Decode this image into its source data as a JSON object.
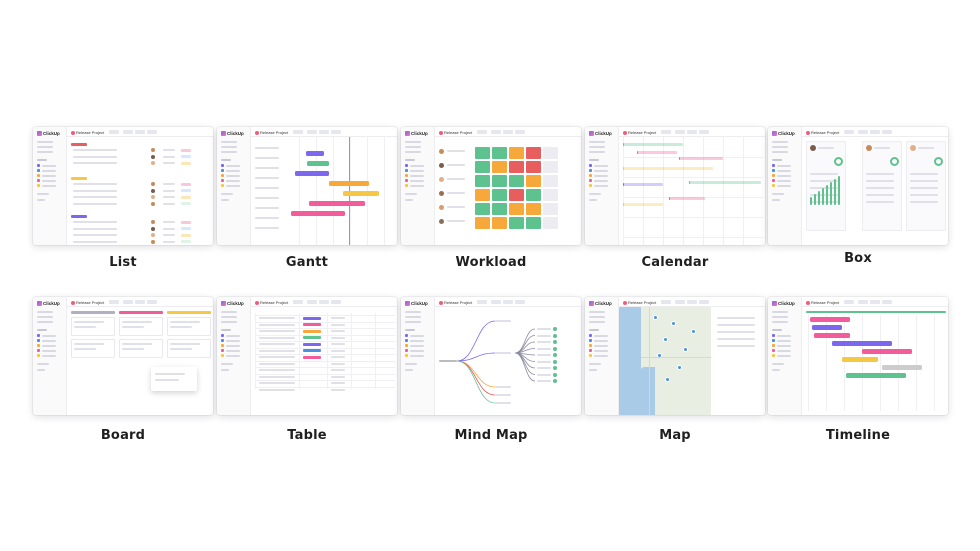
{
  "views": [
    {
      "id": "list",
      "caption": "List"
    },
    {
      "id": "gantt",
      "caption": "Gantt"
    },
    {
      "id": "workload",
      "caption": "Workload"
    },
    {
      "id": "calendar",
      "caption": "Calendar"
    },
    {
      "id": "box",
      "caption": "Box"
    },
    {
      "id": "board",
      "caption": "Board"
    },
    {
      "id": "table",
      "caption": "Table"
    },
    {
      "id": "mindmap",
      "caption": "Mind Map"
    },
    {
      "id": "map",
      "caption": "Map"
    },
    {
      "id": "timeline",
      "caption": "Timeline"
    }
  ],
  "app": {
    "logo": "ClickUp",
    "project": "Release Project"
  },
  "colors": {
    "purple": "#7b68ee",
    "pink": "#f25c9a",
    "orange": "#f7a83a",
    "green": "#5ec28f",
    "red": "#e85d5d",
    "yellow": "#f6c744",
    "blue": "#4a90e2",
    "map_water": "#a9cbe8",
    "map_land": "#e8eee2"
  },
  "workload_colors": [
    "#5ec28f",
    "#f7a83a",
    "#e85d5d"
  ]
}
